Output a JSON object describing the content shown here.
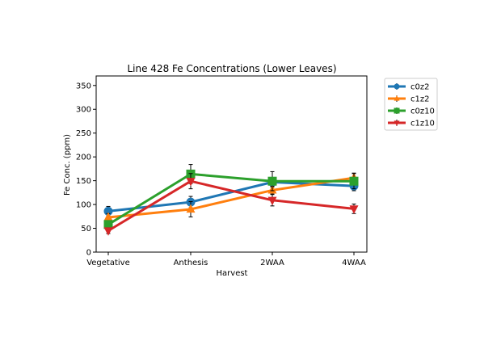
{
  "chart_data": {
    "type": "line",
    "title": "Line 428 Fe Concentrations (Lower Leaves)",
    "xlabel": "Harvest",
    "ylabel": "Fe Conc. (ppm)",
    "categories": [
      "Vegetative",
      "Anthesis",
      "2WAA",
      "4WAA"
    ],
    "ylim": [
      0,
      370
    ],
    "yticks": [
      0,
      50,
      100,
      150,
      200,
      250,
      300,
      350
    ],
    "grid": false,
    "legend_position": "outside-right",
    "error_bars": true,
    "series": [
      {
        "name": "c0z2",
        "color": "#1f77b4",
        "marker": "circle",
        "values": [
          86,
          105,
          147,
          139
        ],
        "errors": [
          10,
          12,
          10,
          10
        ]
      },
      {
        "name": "c1z2",
        "color": "#ff7f0e",
        "marker": "triangle-up",
        "values": [
          73,
          90,
          130,
          156
        ],
        "errors": [
          8,
          16,
          8,
          10
        ]
      },
      {
        "name": "c0z10",
        "color": "#2ca02c",
        "marker": "square",
        "values": [
          58,
          164,
          149,
          149
        ],
        "errors": [
          6,
          20,
          20,
          16
        ]
      },
      {
        "name": "c1z10",
        "color": "#d62728",
        "marker": "triangle-down",
        "values": [
          45,
          149,
          109,
          91
        ],
        "errors": [
          6,
          16,
          12,
          10
        ]
      }
    ]
  }
}
